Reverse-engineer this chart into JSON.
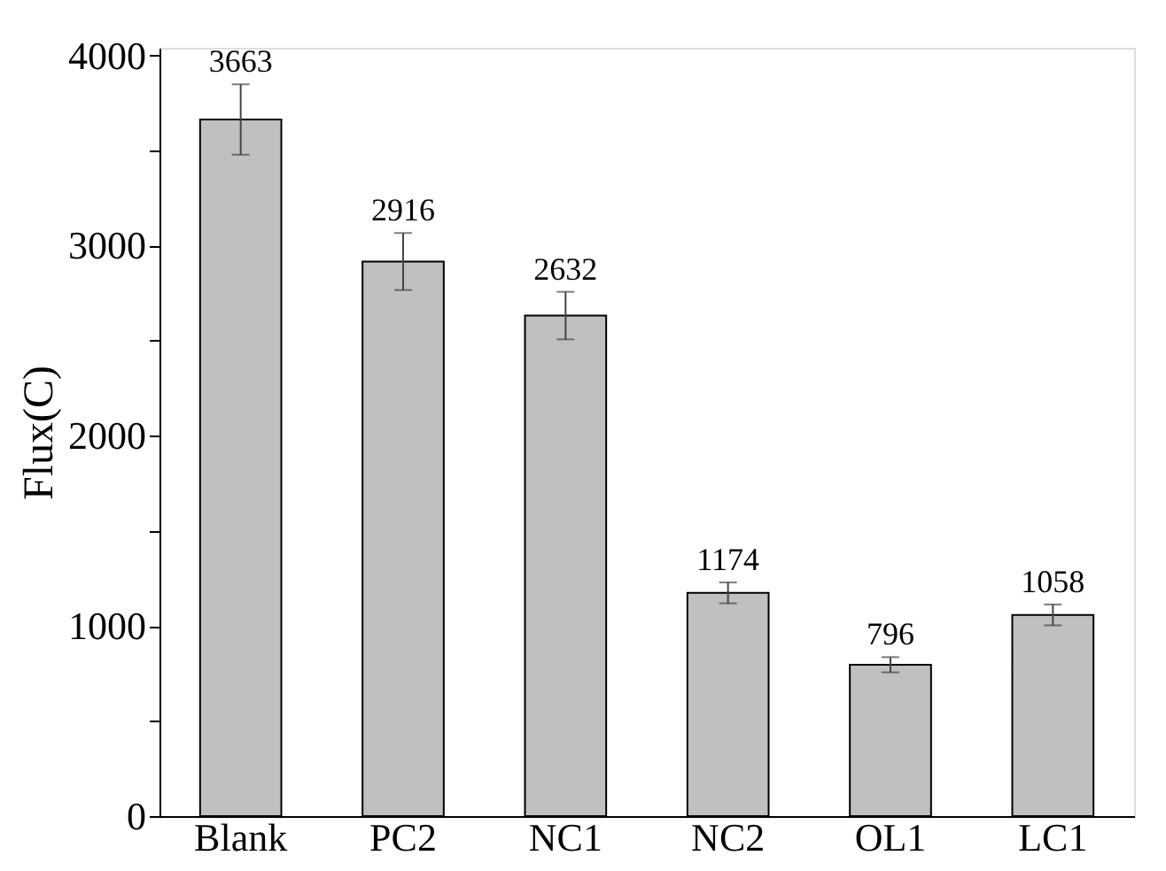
{
  "chart_data": {
    "type": "bar",
    "ylabel": "Flux(C)",
    "categories": [
      "Blank",
      "PC2",
      "NC1",
      "NC2",
      "OL1",
      "LC1"
    ],
    "values": [
      3663,
      2916,
      2632,
      1174,
      796,
      1058
    ],
    "errors": [
      185,
      150,
      125,
      55,
      40,
      55
    ],
    "color": "#c0c0c0",
    "data_labels": true,
    "ylim": [
      0,
      4040
    ],
    "yticks": [
      0,
      {
        "value": 500,
        "label": null
      },
      1000,
      {
        "value": 1500,
        "label": null
      },
      2000,
      {
        "value": 2500,
        "label": null
      },
      3000,
      {
        "value": 3500,
        "label": null
      },
      4000
    ],
    "grid": false
  }
}
